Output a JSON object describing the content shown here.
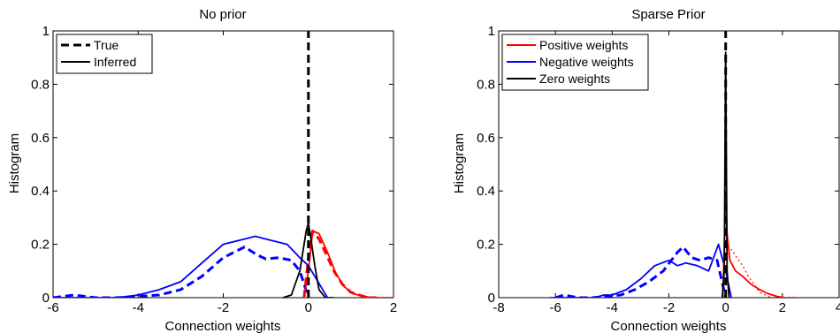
{
  "chart_data": [
    {
      "type": "line",
      "title": "No prior",
      "xlabel": "Connection weights",
      "ylabel": "Histogram",
      "xlim": [
        -6,
        2
      ],
      "ylim": [
        0,
        1
      ],
      "xticks": [
        "-6",
        "-4",
        "-2",
        "0",
        "2"
      ],
      "yticks": [
        "0",
        "0.2",
        "0.4",
        "0.6",
        "0.8",
        "1"
      ],
      "legend": {
        "position": "top-left",
        "entries": [
          {
            "label": "True",
            "color": "#000000",
            "style": "dashed"
          },
          {
            "label": "Inferred",
            "color": "#000000",
            "style": "solid"
          }
        ]
      },
      "series": [
        {
          "color": "#0000ff",
          "style": "dashed",
          "x": [
            -6.0,
            -5.5,
            -5.0,
            -4.5,
            -4.0,
            -3.5,
            -3.0,
            -2.5,
            -2.0,
            -1.5,
            -1.2,
            -1.0,
            -0.7,
            -0.4,
            -0.2,
            0.0
          ],
          "y": [
            0.0,
            0.01,
            0.0,
            0.0,
            0.005,
            0.01,
            0.03,
            0.08,
            0.15,
            0.19,
            0.16,
            0.145,
            0.15,
            0.14,
            0.1,
            0.0
          ]
        },
        {
          "color": "#0000ff",
          "style": "solid",
          "x": [
            -6.0,
            -5.0,
            -4.5,
            -4.0,
            -3.5,
            -3.0,
            -2.5,
            -2.0,
            -1.5,
            -1.25,
            -1.0,
            -0.5,
            -0.2,
            0.0,
            0.15,
            0.3,
            0.45
          ],
          "y": [
            0.0,
            0.0,
            0.0,
            0.01,
            0.03,
            0.06,
            0.13,
            0.2,
            0.22,
            0.23,
            0.22,
            0.2,
            0.15,
            0.12,
            0.08,
            0.04,
            0.0
          ]
        },
        {
          "color": "#ff0000",
          "style": "dashed",
          "x": [
            -0.1,
            0.0,
            0.1,
            0.25,
            0.4,
            0.6,
            0.8,
            1.0,
            1.2,
            1.4,
            1.6
          ],
          "y": [
            0.0,
            0.15,
            0.25,
            0.22,
            0.17,
            0.1,
            0.05,
            0.02,
            0.01,
            0.0,
            0.0
          ]
        },
        {
          "color": "#ff0000",
          "style": "solid",
          "x": [
            -0.1,
            0.0,
            0.1,
            0.25,
            0.45,
            0.65,
            0.85,
            1.05,
            1.3,
            1.5,
            1.8,
            2.0
          ],
          "y": [
            0.0,
            0.1,
            0.25,
            0.24,
            0.17,
            0.09,
            0.04,
            0.015,
            0.005,
            0.0,
            0.0,
            0.0
          ]
        },
        {
          "color": "#000000",
          "style": "dashed",
          "x": [
            0,
            0
          ],
          "y": [
            0,
            1
          ]
        },
        {
          "color": "#000000",
          "style": "solid",
          "x": [
            -0.6,
            -0.4,
            -0.2,
            -0.05,
            0.0,
            0.05,
            0.15,
            0.25,
            0.4,
            0.6
          ],
          "y": [
            0.0,
            0.01,
            0.1,
            0.25,
            0.28,
            0.23,
            0.12,
            0.03,
            0.0,
            0.0
          ]
        }
      ]
    },
    {
      "type": "line",
      "title": "Sparse Prior",
      "xlabel": "Connection weights",
      "ylabel": "Histogram",
      "xlim": [
        -8,
        4
      ],
      "ylim": [
        0,
        1
      ],
      "xticks": [
        "-8",
        "-6",
        "-4",
        "-2",
        "0",
        "2",
        "4"
      ],
      "yticks": [
        "0",
        "0.2",
        "0.4",
        "0.6",
        "0.8",
        "1"
      ],
      "legend": {
        "position": "top-left",
        "entries": [
          {
            "label": "Positive weights",
            "color": "#ff0000",
            "style": "solid"
          },
          {
            "label": "Negative weights",
            "color": "#0000ff",
            "style": "solid"
          },
          {
            "label": "Zero weights",
            "color": "#000000",
            "style": "solid"
          }
        ]
      },
      "series": [
        {
          "color": "#0000ff",
          "style": "dashed",
          "x": [
            -6.0,
            -5.7,
            -5.2,
            -4.7,
            -4.2,
            -3.7,
            -3.2,
            -2.7,
            -2.2,
            -1.7,
            -1.5,
            -1.2,
            -0.9,
            -0.6,
            -0.3,
            0.0
          ],
          "y": [
            0.0,
            0.01,
            0.0,
            0.0,
            0.005,
            0.01,
            0.03,
            0.06,
            0.1,
            0.17,
            0.19,
            0.15,
            0.14,
            0.15,
            0.14,
            0.0
          ]
        },
        {
          "color": "#0000ff",
          "style": "solid",
          "x": [
            -6.2,
            -5.0,
            -4.6,
            -4.3,
            -4.0,
            -3.5,
            -3.0,
            -2.5,
            -2.0,
            -1.7,
            -1.4,
            -1.0,
            -0.6,
            -0.25,
            0.0,
            0.2
          ],
          "y": [
            0.0,
            0.0,
            0.0,
            0.01,
            0.01,
            0.03,
            0.07,
            0.12,
            0.14,
            0.12,
            0.13,
            0.12,
            0.1,
            0.2,
            0.1,
            0.0
          ]
        },
        {
          "color": "#ff0000",
          "style": "dotted",
          "x": [
            0.0,
            0.2,
            0.4,
            0.6,
            0.8,
            1.0,
            1.2,
            1.4,
            1.6
          ],
          "y": [
            0.15,
            0.18,
            0.15,
            0.12,
            0.08,
            0.05,
            0.02,
            0.01,
            0.0
          ]
        },
        {
          "color": "#ff0000",
          "style": "solid",
          "x": [
            -0.1,
            0.0,
            0.05,
            0.15,
            0.35,
            0.6,
            0.9,
            1.2,
            1.5,
            1.8,
            2.1,
            2.5
          ],
          "y": [
            0.0,
            0.38,
            0.24,
            0.14,
            0.1,
            0.08,
            0.05,
            0.03,
            0.015,
            0.005,
            0.0,
            0.0
          ]
        },
        {
          "color": "#000000",
          "style": "dashed",
          "x": [
            0,
            0
          ],
          "y": [
            0,
            1
          ]
        },
        {
          "color": "#000000",
          "style": "solid",
          "x": [
            -0.12,
            -0.05,
            0.0,
            0.05,
            0.12
          ],
          "y": [
            0.0,
            0.1,
            0.92,
            0.1,
            0.0
          ]
        }
      ]
    }
  ]
}
